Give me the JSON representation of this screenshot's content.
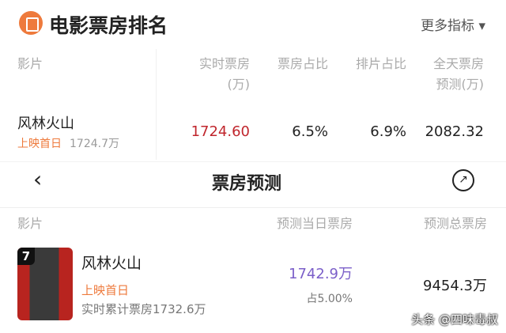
{
  "top": {
    "title": "电影票房排名",
    "more": "更多指标 ▾",
    "headers": {
      "film": "影片",
      "realtime": "实时票房",
      "realtime_unit": "(万)",
      "share": "票房占比",
      "schedule": "排片占比",
      "forecast": "全天票房",
      "forecast_unit": "预测(万)"
    },
    "row": {
      "name": "风林火山",
      "tag": "上映首日",
      "tag_value": "1724.7万",
      "realtime": "1724.60",
      "share": "6.5%",
      "schedule": "6.9%",
      "forecast": "2082.32"
    }
  },
  "bottom": {
    "title": "票房预测",
    "headers": {
      "film": "影片",
      "day": "预测当日票房",
      "total": "预测总票房"
    },
    "row": {
      "rank": "7",
      "name": "风林火山",
      "tag": "上映首日",
      "cumulative": "实时累计票房1732.6万",
      "day": "1742.9万",
      "day_share": "占5.00%",
      "total": "9454.3万"
    }
  },
  "watermark": "头条 @四味毒叔",
  "colors": {
    "accent": "#ee7a3c",
    "red": "#c0262d",
    "purple": "#7b5fc9"
  }
}
